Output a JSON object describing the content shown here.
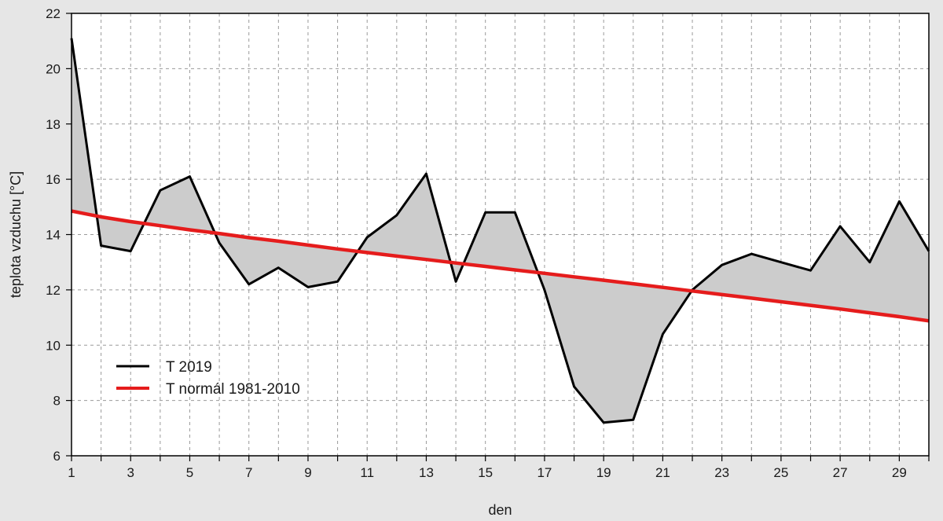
{
  "chart_data": {
    "type": "line",
    "title": "",
    "xlabel": "den",
    "ylabel": "teplota vzduchu [°C]",
    "xlim": [
      1,
      30
    ],
    "ylim": [
      6,
      22
    ],
    "x_ticks": [
      1,
      3,
      5,
      7,
      9,
      11,
      13,
      15,
      17,
      19,
      21,
      23,
      25,
      27,
      29
    ],
    "y_ticks": [
      6,
      8,
      10,
      12,
      14,
      16,
      18,
      20,
      22
    ],
    "grid": true,
    "legend_position": "bottom-left",
    "fill_between_series": true,
    "fill_color": "#cccccc",
    "x": [
      1,
      2,
      3,
      4,
      5,
      6,
      7,
      8,
      9,
      10,
      11,
      12,
      13,
      14,
      15,
      16,
      17,
      18,
      19,
      20,
      21,
      22,
      23,
      24,
      25,
      26,
      27,
      28,
      29,
      30
    ],
    "series": [
      {
        "name": "T 2019",
        "color": "#000000",
        "values": [
          21.1,
          13.6,
          13.4,
          15.6,
          16.1,
          13.7,
          12.2,
          12.8,
          12.1,
          12.3,
          13.9,
          14.7,
          16.2,
          12.3,
          14.8,
          14.8,
          12.0,
          8.5,
          7.2,
          7.3,
          10.4,
          12.0,
          12.9,
          13.3,
          13.0,
          12.7,
          14.3,
          13.0,
          15.2,
          13.4
        ]
      },
      {
        "name": "T normál 1981-2010",
        "color": "#e51c1c",
        "values": [
          14.85,
          14.64,
          14.47,
          14.32,
          14.17,
          14.04,
          13.89,
          13.76,
          13.62,
          13.48,
          13.35,
          13.22,
          13.1,
          12.97,
          12.85,
          12.72,
          12.6,
          12.47,
          12.35,
          12.22,
          12.09,
          11.96,
          11.83,
          11.7,
          11.57,
          11.44,
          11.31,
          11.17,
          11.03,
          10.88
        ]
      }
    ]
  }
}
